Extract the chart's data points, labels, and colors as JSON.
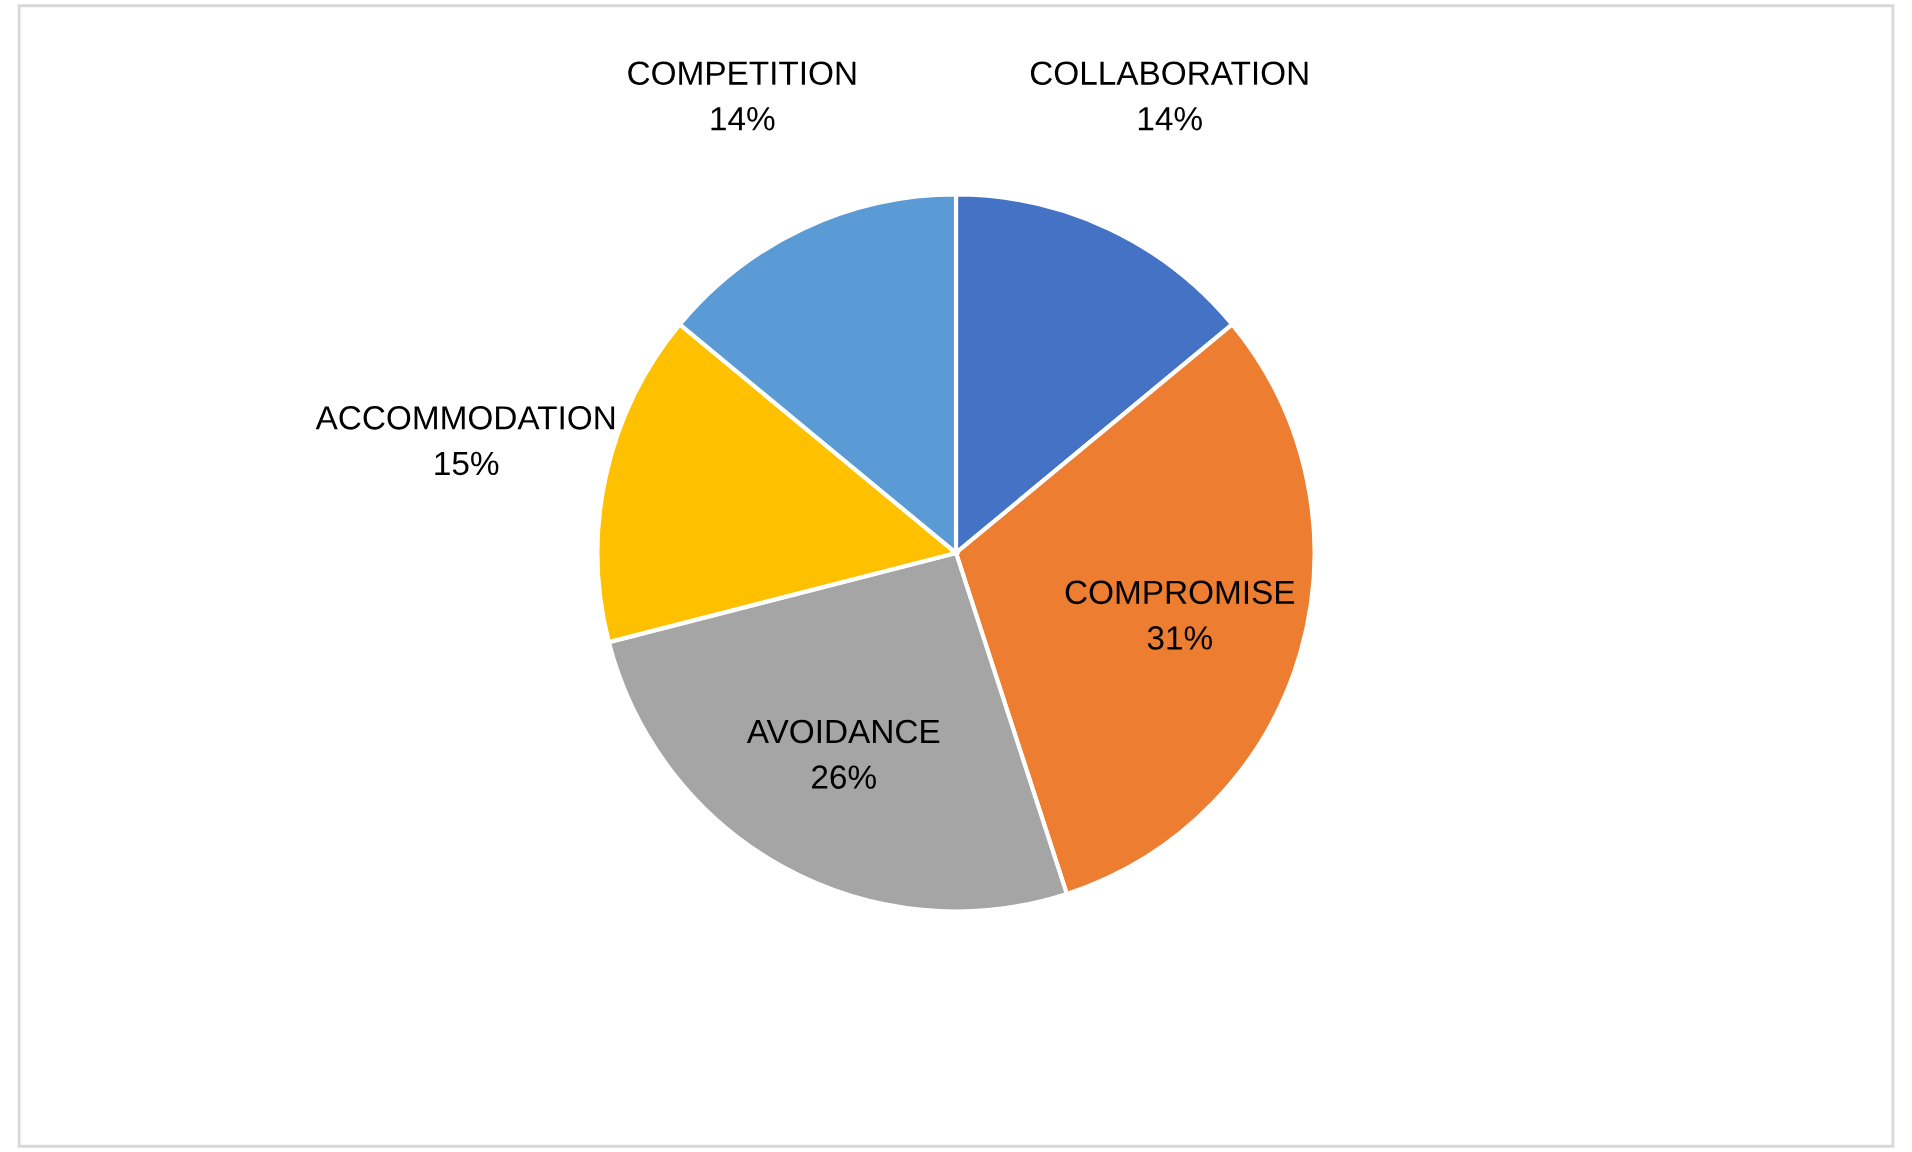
{
  "chart_data": {
    "type": "pie",
    "categories": [
      "COLLABORATION",
      "COMPROMISE",
      "AVOIDANCE",
      "ACCOMMODATION",
      "COMPETITION"
    ],
    "values": [
      14,
      31,
      26,
      15,
      14
    ],
    "value_labels": [
      "14%",
      "31%",
      "26%",
      "15%",
      "14%"
    ],
    "colors": [
      "#4472c4",
      "#ed7d31",
      "#a5a5a5",
      "#ffc000",
      "#5b9bd5"
    ],
    "legend": false
  }
}
